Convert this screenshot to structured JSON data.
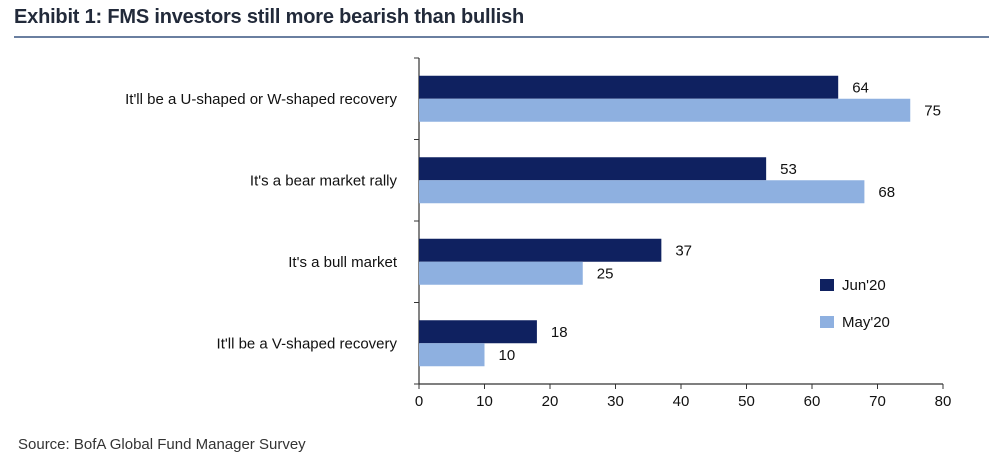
{
  "title": "Exhibit 1: FMS investors still more bearish than bullish",
  "source": "Source:  BofA Global Fund Manager Survey",
  "chart_data": {
    "type": "bar",
    "orientation": "horizontal",
    "categories": [
      "It'll be a U-shaped or W-shaped recovery",
      "It's a bear market rally",
      "It's a bull market",
      "It'll be a V-shaped recovery"
    ],
    "series": [
      {
        "name": "Jun'20",
        "color": "#0f2160",
        "values": [
          64,
          53,
          37,
          18
        ]
      },
      {
        "name": "May'20",
        "color": "#8eb0e0",
        "values": [
          75,
          68,
          25,
          10
        ]
      }
    ],
    "xlim": [
      0,
      80
    ],
    "xticks": [
      "0",
      "10",
      "20",
      "30",
      "40",
      "50",
      "60",
      "70",
      "80"
    ],
    "grid": false,
    "legend": "right"
  }
}
